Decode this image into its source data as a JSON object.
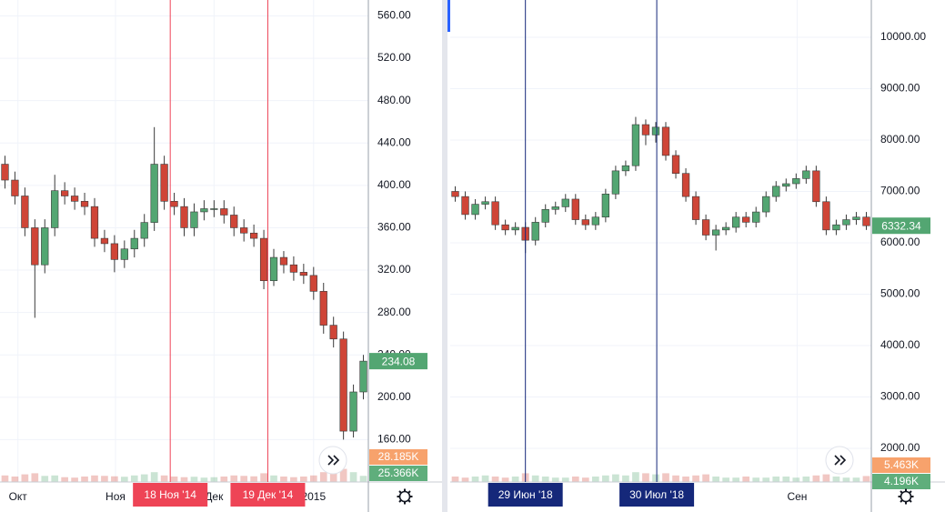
{
  "chart_data": [
    {
      "type": "candlestick",
      "up_color": "#53a672",
      "down_color": "#cf4537",
      "xlim": [
        -0.5,
        36.5
      ],
      "ylim": [
        120,
        575
      ],
      "yticks": [
        {
          "value": 160,
          "label": "160.00"
        },
        {
          "value": 200,
          "label": "200.00"
        },
        {
          "value": 240,
          "label": "240.00"
        },
        {
          "value": 280,
          "label": "280.00"
        },
        {
          "value": 320,
          "label": "320.00"
        },
        {
          "value": 360,
          "label": "360.00"
        },
        {
          "value": 400,
          "label": "400.00"
        },
        {
          "value": 440,
          "label": "440.00"
        },
        {
          "value": 480,
          "label": "480.00"
        },
        {
          "value": 520,
          "label": "520.00"
        },
        {
          "value": 560,
          "label": "560.00"
        }
      ],
      "xticks": [
        {
          "value": 1.3,
          "label": "Окт"
        },
        {
          "value": 11.1,
          "label": "Ноя"
        },
        {
          "value": 21.0,
          "label": "Дек"
        },
        {
          "value": 31.0,
          "label": "2015"
        }
      ],
      "open": [
        420,
        405,
        390,
        360,
        325,
        360,
        395,
        390,
        385,
        380,
        350,
        345,
        330,
        340,
        350,
        365,
        420,
        385,
        380,
        360,
        375,
        378,
        378,
        372,
        360,
        355,
        350,
        310,
        332,
        325,
        318,
        315,
        300,
        268,
        255,
        168,
        205
      ],
      "high": [
        428,
        413,
        398,
        368,
        368,
        410,
        403,
        398,
        393,
        388,
        358,
        353,
        348,
        358,
        373,
        455,
        428,
        393,
        388,
        383,
        386,
        386,
        386,
        380,
        368,
        363,
        358,
        340,
        338,
        333,
        326,
        323,
        308,
        276,
        262,
        212,
        240
      ],
      "low": [
        397,
        382,
        352,
        275,
        317,
        352,
        382,
        377,
        372,
        342,
        337,
        318,
        322,
        332,
        342,
        357,
        377,
        372,
        352,
        352,
        367,
        370,
        364,
        352,
        347,
        342,
        302,
        305,
        317,
        310,
        307,
        292,
        260,
        247,
        160,
        162,
        198
      ],
      "close": [
        405,
        390,
        360,
        325,
        360,
        395,
        390,
        385,
        380,
        350,
        345,
        330,
        340,
        350,
        365,
        420,
        385,
        380,
        360,
        375,
        378,
        378,
        372,
        360,
        355,
        350,
        310,
        332,
        325,
        318,
        315,
        300,
        268,
        255,
        168,
        205,
        234.08
      ],
      "volume": [
        30,
        25,
        35,
        40,
        28,
        30,
        22,
        20,
        25,
        30,
        28,
        26,
        24,
        30,
        35,
        45,
        30,
        25,
        22,
        24,
        20,
        22,
        25,
        30,
        28,
        26,
        40,
        30,
        25,
        22,
        25,
        30,
        45,
        50,
        60,
        45,
        28.185
      ],
      "volume_lim": [
        0,
        250
      ],
      "last_price": {
        "value": 234.08,
        "label": "234.08"
      },
      "volume_labels": [
        "28.185K",
        "25.366K"
      ],
      "volume_label_colors": [
        "#f7a26c",
        "#5fae7c"
      ],
      "crosshair_color": "#ee4456",
      "crosshairs": [
        {
          "value": 16.6,
          "label": "18 Ноя '14"
        },
        {
          "value": 26.4,
          "label": "19 Дек '14"
        }
      ]
    },
    {
      "type": "candlestick",
      "up_color": "#53a672",
      "down_color": "#cf4537",
      "xlim": [
        -0.5,
        41.5
      ],
      "ylim": [
        1345,
        10725
      ],
      "yticks": [
        {
          "value": 2000,
          "label": "2000.00"
        },
        {
          "value": 3000,
          "label": "3000.00"
        },
        {
          "value": 4000,
          "label": "4000.00"
        },
        {
          "value": 5000,
          "label": "5000.00"
        },
        {
          "value": 6000,
          "label": "6000.00"
        },
        {
          "value": 7000,
          "label": "7000.00"
        },
        {
          "value": 8000,
          "label": "8000.00"
        },
        {
          "value": 9000,
          "label": "9000.00"
        },
        {
          "value": 10000,
          "label": "10000.00"
        }
      ],
      "xticks": [
        {
          "value": 34.1,
          "label": "Сен"
        }
      ],
      "open": [
        7000,
        6900,
        6550,
        6750,
        6800,
        6350,
        6250,
        6300,
        6050,
        6400,
        6650,
        6700,
        6850,
        6450,
        6350,
        6500,
        6950,
        7400,
        7500,
        8300,
        8100,
        8250,
        7700,
        7350,
        6900,
        6450,
        6150,
        6250,
        6300,
        6500,
        6400,
        6600,
        6900,
        7100,
        7150,
        7250,
        7400,
        6800,
        6250,
        6350,
        6450,
        6500
      ],
      "high": [
        7100,
        7000,
        6850,
        6900,
        6900,
        6450,
        6400,
        6400,
        6500,
        6750,
        6800,
        6950,
        6950,
        6550,
        6600,
        7050,
        7500,
        7600,
        8450,
        8400,
        8350,
        8350,
        7800,
        7450,
        7000,
        6550,
        6350,
        6400,
        6600,
        6600,
        6700,
        7000,
        7200,
        7250,
        7350,
        7500,
        7500,
        6900,
        6450,
        6550,
        6600,
        6600
      ],
      "low": [
        6800,
        6450,
        6450,
        6650,
        6250,
        6150,
        6150,
        5800,
        5950,
        6300,
        6550,
        6600,
        6350,
        6250,
        6250,
        6400,
        6850,
        7300,
        7400,
        7900,
        7950,
        7600,
        7250,
        6800,
        6350,
        6050,
        5850,
        6150,
        6200,
        6300,
        6300,
        6500,
        6800,
        7000,
        7050,
        7150,
        6700,
        6150,
        6150,
        6250,
        6350,
        6250
      ],
      "close": [
        6900,
        6550,
        6750,
        6800,
        6350,
        6250,
        6300,
        6050,
        6400,
        6650,
        6700,
        6850,
        6450,
        6350,
        6500,
        6950,
        7400,
        7500,
        8300,
        8100,
        8250,
        7700,
        7350,
        6900,
        6450,
        6150,
        6250,
        6300,
        6500,
        6400,
        6600,
        6900,
        7100,
        7150,
        7250,
        7400,
        6800,
        6250,
        6350,
        6450,
        6500,
        6332.34
      ],
      "volume": [
        5,
        4,
        5,
        6,
        5,
        4,
        5,
        8,
        6,
        5,
        4,
        4,
        5,
        4,
        5,
        6,
        7,
        6,
        9,
        8,
        7,
        8,
        6,
        5,
        6,
        7,
        5,
        4,
        4,
        5,
        4,
        4,
        5,
        5,
        4,
        5,
        6,
        7,
        5,
        4,
        4,
        5.463
      ],
      "volume_lim": [
        0,
        50
      ],
      "last_price": {
        "value": 6332.34,
        "label": "6332.34"
      },
      "volume_labels": [
        "5.463K",
        "4.196K"
      ],
      "volume_label_colors": [
        "#f7a26c",
        "#5fae7c"
      ],
      "crosshair_color": "#15287a",
      "crosshairs": [
        {
          "value": 7.0,
          "label": "29 Июн '18"
        },
        {
          "value": 20.1,
          "label": "30 Июл '18"
        }
      ]
    }
  ]
}
